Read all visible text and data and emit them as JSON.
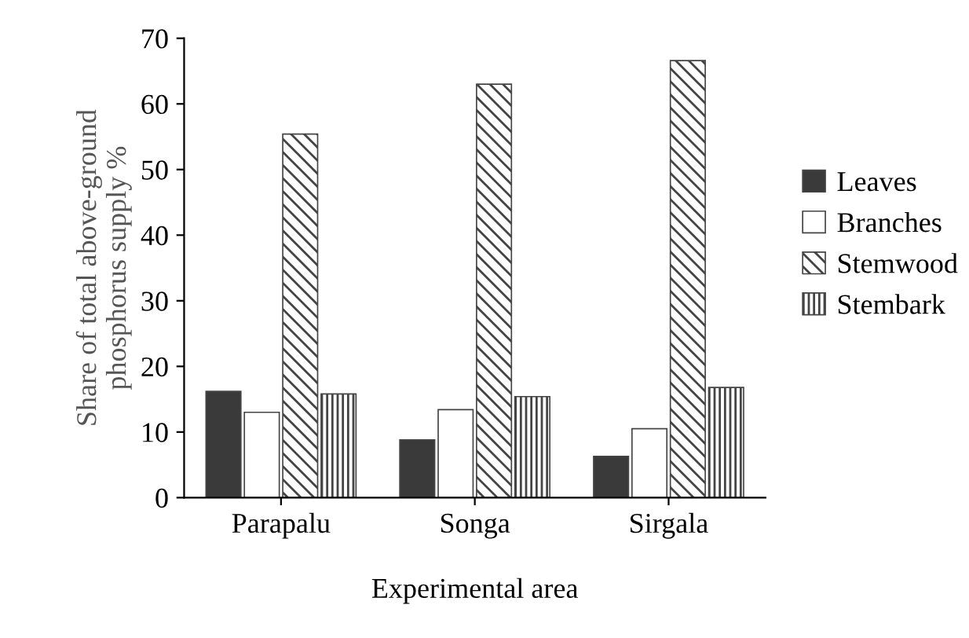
{
  "chart_data": {
    "type": "bar",
    "xlabel": "Experimental area",
    "ylabel": "Share of total above-ground\nphosphorus supply %",
    "categories": [
      "Parapalu",
      "Songa",
      "Sirgala"
    ],
    "series": [
      {
        "name": "Leaves",
        "color": "#3a3a3a",
        "values": [
          16.2,
          8.8,
          6.3
        ]
      },
      {
        "name": "Branches",
        "color": "#ffffff",
        "values": [
          13.0,
          13.4,
          10.5
        ]
      },
      {
        "name": "Stemwood",
        "color": "#444444",
        "values": [
          55.4,
          63.0,
          66.6
        ]
      },
      {
        "name": "Stembark",
        "color": "#444444",
        "values": [
          15.8,
          15.4,
          16.8
        ]
      }
    ],
    "ylim": [
      0,
      70
    ],
    "yticks": [
      0,
      10,
      20,
      30,
      40,
      50,
      60,
      70
    ],
    "grid": false,
    "legend": "right"
  }
}
